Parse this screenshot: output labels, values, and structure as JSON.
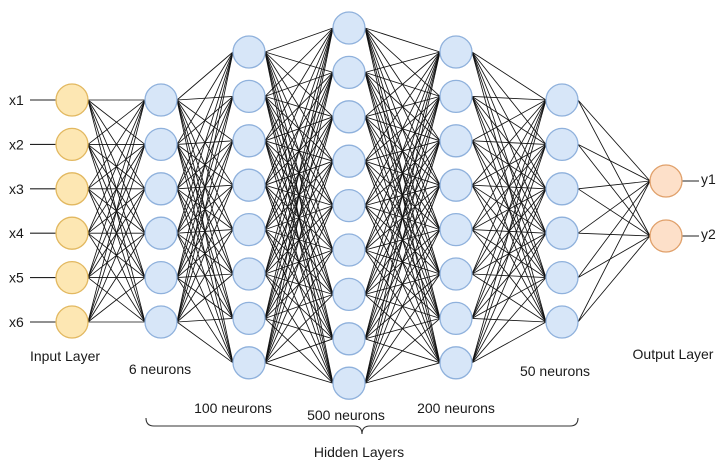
{
  "colors": {
    "input_fill": "#fde7b3",
    "input_stroke": "#e2b860",
    "hidden_fill": "#d7e6f8",
    "hidden_stroke": "#8fb1dc",
    "output_fill": "#fde0c9",
    "output_stroke": "#e0a06a",
    "edge": "#111111"
  },
  "layers": [
    {
      "id": "input",
      "kind": "input",
      "nodes": 6,
      "caption": "Input Layer"
    },
    {
      "id": "hidden1",
      "kind": "hidden",
      "nodes": 6,
      "caption": "6 neurons"
    },
    {
      "id": "hidden2",
      "kind": "hidden",
      "nodes": 8,
      "caption": "100 neurons"
    },
    {
      "id": "hidden3",
      "kind": "hidden",
      "nodes": 9,
      "caption": "500 neurons"
    },
    {
      "id": "hidden4",
      "kind": "hidden",
      "nodes": 8,
      "caption": "200 neurons"
    },
    {
      "id": "hidden5",
      "kind": "hidden",
      "nodes": 6,
      "caption": "50 neurons"
    },
    {
      "id": "output",
      "kind": "output",
      "nodes": 2,
      "caption": "Output Layer"
    }
  ],
  "inputs": [
    "x1",
    "x2",
    "x3",
    "x4",
    "x5",
    "x6"
  ],
  "outputs": [
    "y1",
    "y2"
  ],
  "group_label": "Hidden Layers"
}
